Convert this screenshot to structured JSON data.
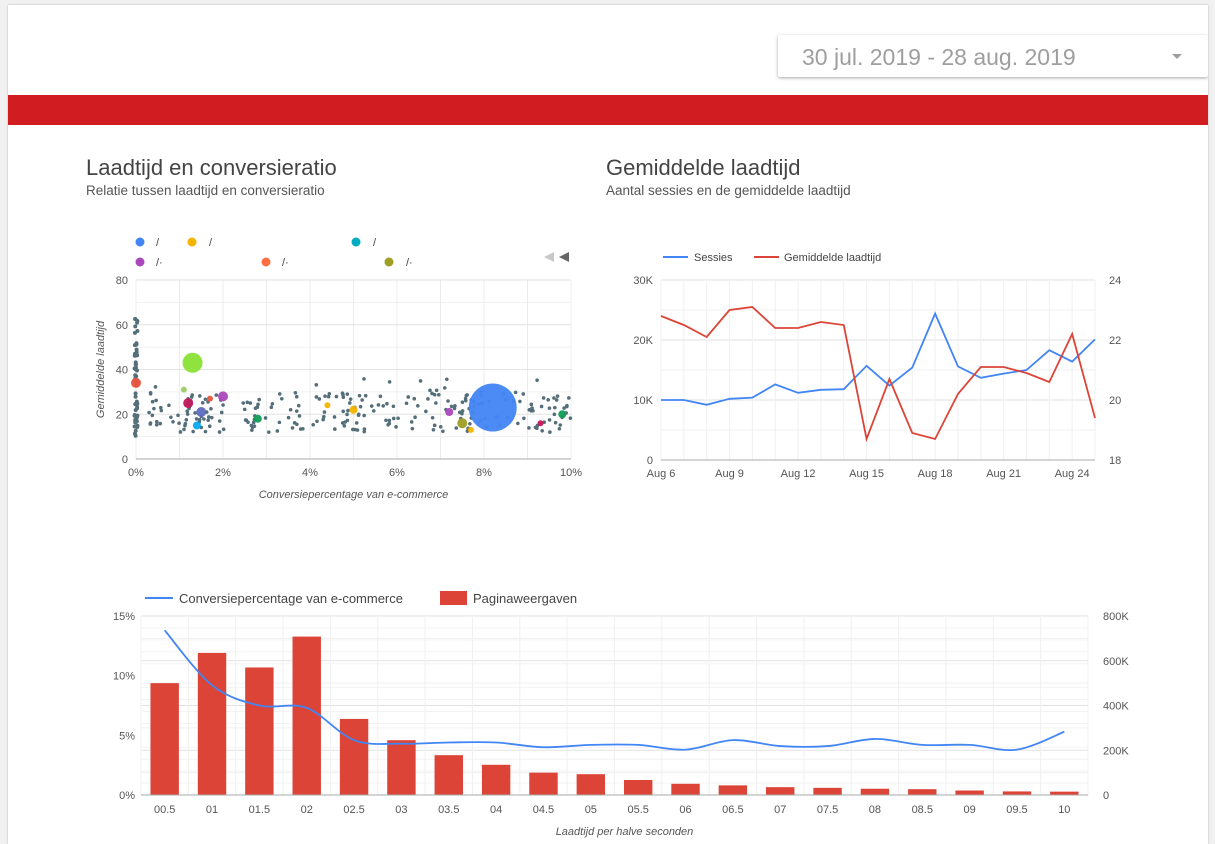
{
  "header": {
    "date_range": "30 jul. 2019 - 28 aug. 2019",
    "accent_color": "#d11c22"
  },
  "scatter": {
    "title": "Laadtijd en conversieratio",
    "subtitle": "Relatie tussen laadtijd en conversieratio",
    "legend": [
      {
        "label": "/",
        "color": "#4285f4"
      },
      {
        "label": "/",
        "color": "#f4b400"
      },
      {
        "label": "/",
        "color": "#00acc1"
      },
      {
        "label": "/·",
        "color": "#ab47bc"
      },
      {
        "label": "/·",
        "color": "#ff7043"
      },
      {
        "label": "/·",
        "color": "#9e9d24"
      }
    ]
  },
  "laadtijd": {
    "title": "Gemiddelde laadtijd",
    "subtitle": "Aantal sessies en de gemiddelde laadtijd"
  },
  "chart_data": [
    {
      "type": "scatter",
      "xlabel": "Conversiepercentage van e-commerce",
      "ylabel": "Gemiddelde laadtijd",
      "xlim": [
        0,
        10
      ],
      "ylim": [
        0,
        80
      ],
      "xticks": [
        "0%",
        "2%",
        "4%",
        "6%",
        "8%",
        "10%"
      ],
      "yticks": [
        "0",
        "20",
        "40",
        "60",
        "80"
      ],
      "grid": true,
      "legend_position": "top",
      "highlight_points": [
        {
          "x": 8.2,
          "y": 23,
          "size": 24,
          "color": "#4285f4"
        },
        {
          "x": 1.3,
          "y": 43,
          "size": 10,
          "color": "#8ae234"
        },
        {
          "x": 0.0,
          "y": 34,
          "size": 5,
          "color": "#e8543f"
        },
        {
          "x": 1.2,
          "y": 25,
          "size": 5,
          "color": "#c2185b"
        },
        {
          "x": 1.5,
          "y": 21,
          "size": 5,
          "color": "#5c6bc0"
        },
        {
          "x": 2.0,
          "y": 28,
          "size": 5,
          "color": "#ab47bc"
        },
        {
          "x": 1.4,
          "y": 15,
          "size": 4,
          "color": "#03a9f4"
        },
        {
          "x": 1.1,
          "y": 31,
          "size": 3,
          "color": "#9ccc65"
        },
        {
          "x": 2.8,
          "y": 18,
          "size": 4,
          "color": "#0f9d58"
        },
        {
          "x": 4.4,
          "y": 24,
          "size": 3,
          "color": "#f4b400"
        },
        {
          "x": 5.0,
          "y": 22,
          "size": 4,
          "color": "#f4b400"
        },
        {
          "x": 7.2,
          "y": 21,
          "size": 4,
          "color": "#ab47bc"
        },
        {
          "x": 7.5,
          "y": 16,
          "size": 5,
          "color": "#9e9d24"
        },
        {
          "x": 7.7,
          "y": 13,
          "size": 3,
          "color": "#f4b400"
        },
        {
          "x": 9.3,
          "y": 16,
          "size": 3,
          "color": "#c2185b"
        },
        {
          "x": 9.8,
          "y": 20,
          "size": 4,
          "color": "#0f9d58"
        },
        {
          "x": 1.7,
          "y": 27,
          "size": 3,
          "color": "#e8543f"
        }
      ]
    },
    {
      "type": "line",
      "x": [
        "Aug 6",
        "Aug 7",
        "Aug 8",
        "Aug 9",
        "Aug 10",
        "Aug 11",
        "Aug 12",
        "Aug 13",
        "Aug 14",
        "Aug 15",
        "Aug 16",
        "Aug 17",
        "Aug 18",
        "Aug 19",
        "Aug 20",
        "Aug 21",
        "Aug 22",
        "Aug 23",
        "Aug 24",
        "Aug 25"
      ],
      "xticks": [
        "Aug 6",
        "Aug 9",
        "Aug 12",
        "Aug 15",
        "Aug 18",
        "Aug 21",
        "Aug 24"
      ],
      "y_left_ticks": [
        "0",
        "10K",
        "20K",
        "30K"
      ],
      "y_right_ticks": [
        "18",
        "20",
        "22",
        "24"
      ],
      "ylim_left": [
        0,
        30000
      ],
      "ylim_right": [
        18,
        24
      ],
      "grid": true,
      "legend_position": "top",
      "series": [
        {
          "name": "Sessies",
          "axis": "left",
          "color": "#4285f4",
          "values": [
            10000,
            10000,
            9200,
            10200,
            10400,
            12600,
            11200,
            11700,
            11800,
            15700,
            12400,
            15400,
            24400,
            15600,
            13700,
            14400,
            15000,
            18300,
            16400,
            20100
          ]
        },
        {
          "name": "Gemiddelde laadtijd",
          "axis": "right",
          "color": "#db4437",
          "values": [
            22.8,
            22.5,
            22.1,
            23.0,
            23.1,
            22.4,
            22.4,
            22.6,
            22.5,
            18.7,
            20.7,
            18.9,
            18.7,
            20.2,
            21.1,
            21.1,
            20.9,
            20.6,
            22.2,
            19.4
          ]
        }
      ]
    },
    {
      "type": "bar",
      "categories": [
        "00.5",
        "01",
        "01.5",
        "02",
        "02.5",
        "03",
        "03.5",
        "04",
        "04.5",
        "05",
        "05.5",
        "06",
        "06.5",
        "07",
        "07.5",
        "08",
        "08.5",
        "09",
        "09.5",
        "10"
      ],
      "xlabel": "Laadtijd per halve seconden",
      "y_left_ticks": [
        "0%",
        "5%",
        "10%",
        "15%"
      ],
      "y_right_ticks": [
        "0",
        "200K",
        "400K",
        "600K",
        "800K"
      ],
      "ylim_left": [
        0,
        15
      ],
      "ylim_right": [
        0,
        800000
      ],
      "grid": true,
      "legend_position": "top",
      "series": [
        {
          "name": "Paginaweergaven",
          "type": "bar",
          "axis": "right",
          "color": "#db4437",
          "values": [
            500000,
            635000,
            570000,
            708000,
            340000,
            245000,
            178000,
            135000,
            100000,
            93000,
            67000,
            50000,
            43000,
            35000,
            32000,
            28000,
            26000,
            20000,
            16000,
            15000
          ]
        },
        {
          "name": "Conversiepercentage van e-commerce",
          "type": "line",
          "axis": "left",
          "color": "#4285f4",
          "values": [
            13.8,
            9.2,
            7.5,
            7.3,
            4.6,
            4.3,
            4.4,
            4.4,
            4.0,
            4.2,
            4.2,
            3.8,
            4.6,
            4.1,
            4.1,
            4.7,
            4.2,
            4.2,
            3.8,
            5.3
          ]
        }
      ]
    }
  ]
}
